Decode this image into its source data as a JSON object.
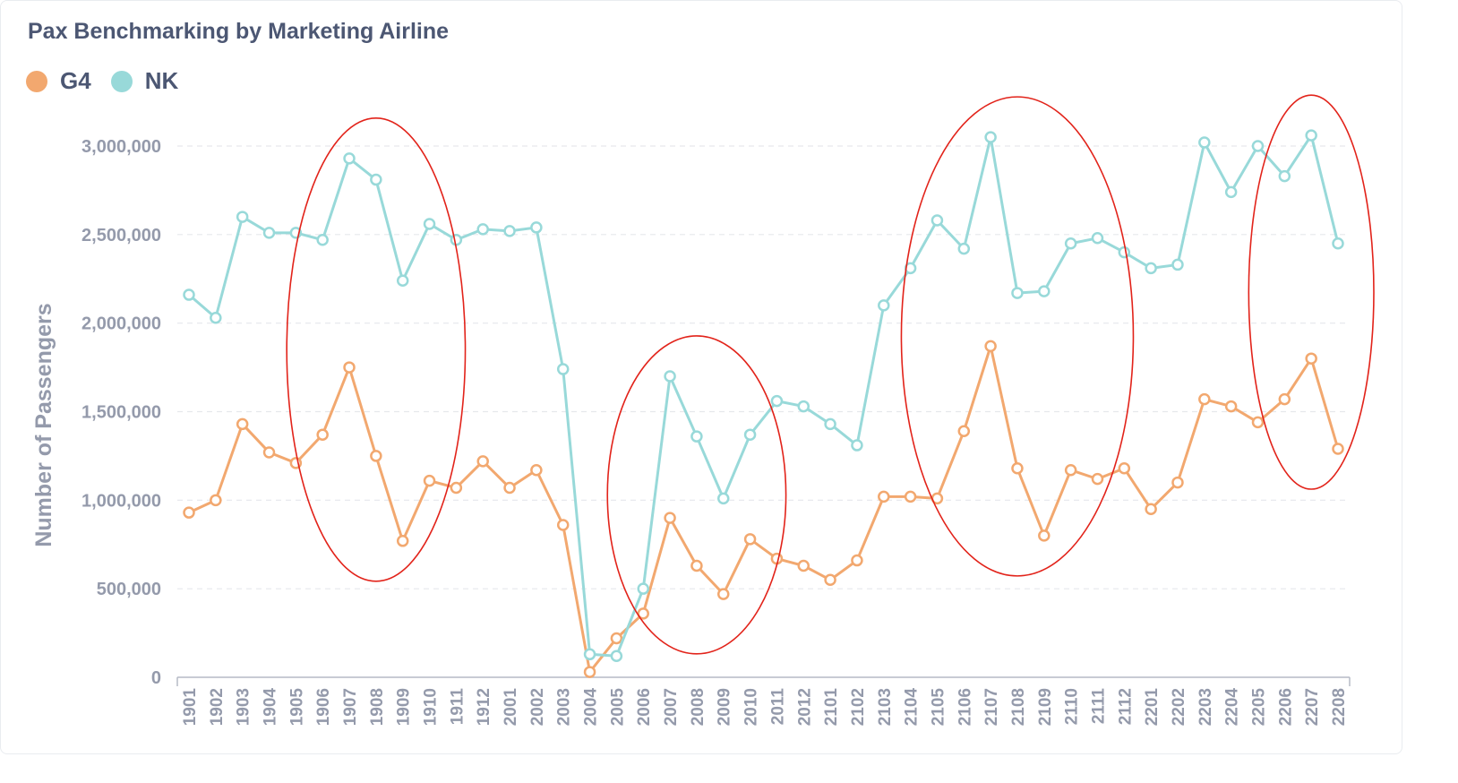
{
  "colors": {
    "G4": "#f2a86f",
    "NK": "#98d9d9",
    "annotation": "#e2231a",
    "grid": "#e6e8ec",
    "axis": "#b5bac5"
  },
  "card": {
    "title": "Pax Benchmarking by Marketing Airline"
  },
  "legend": [
    {
      "label": "G4",
      "color_key": "G4"
    },
    {
      "label": "NK",
      "color_key": "NK"
    }
  ],
  "chart_data": {
    "type": "line",
    "title": "Pax Benchmarking by Marketing Airline",
    "xlabel": "",
    "ylabel": "Number of Passengers",
    "ylim": [
      0,
      3000000
    ],
    "yticks": [
      0,
      500000,
      1000000,
      1500000,
      2000000,
      2500000,
      3000000
    ],
    "ytick_labels": [
      "0",
      "500,000",
      "1,000,000",
      "1,500,000",
      "2,000,000",
      "2,500,000",
      "3,000,000"
    ],
    "grid": true,
    "legend_position": "top-left",
    "categories": [
      "1901",
      "1902",
      "1903",
      "1904",
      "1905",
      "1906",
      "1907",
      "1908",
      "1909",
      "1910",
      "1911",
      "1912",
      "2001",
      "2002",
      "2003",
      "2004",
      "2005",
      "2006",
      "2007",
      "2008",
      "2009",
      "2010",
      "2011",
      "2012",
      "2101",
      "2102",
      "2103",
      "2104",
      "2105",
      "2106",
      "2107",
      "2108",
      "2109",
      "2110",
      "2111",
      "2112",
      "2201",
      "2202",
      "2203",
      "2204",
      "2205",
      "2206",
      "2207",
      "2208"
    ],
    "series": [
      {
        "name": "G4",
        "values": [
          930000,
          1000000,
          1430000,
          1270000,
          1210000,
          1370000,
          1750000,
          1250000,
          770000,
          1110000,
          1070000,
          1220000,
          1070000,
          1170000,
          860000,
          30000,
          220000,
          360000,
          900000,
          630000,
          470000,
          780000,
          670000,
          630000,
          550000,
          660000,
          1020000,
          1020000,
          1010000,
          1390000,
          1870000,
          1180000,
          800000,
          1170000,
          1120000,
          1180000,
          950000,
          1100000,
          1570000,
          1530000,
          1440000,
          1570000,
          1800000,
          1290000
        ]
      },
      {
        "name": "NK",
        "values": [
          2160000,
          2030000,
          2600000,
          2510000,
          2510000,
          2470000,
          2930000,
          2810000,
          2240000,
          2560000,
          2470000,
          2530000,
          2520000,
          2540000,
          1740000,
          130000,
          120000,
          500000,
          1700000,
          1360000,
          1010000,
          1370000,
          1560000,
          1530000,
          1430000,
          1310000,
          2100000,
          2310000,
          2580000,
          2420000,
          3050000,
          2170000,
          2180000,
          2450000,
          2480000,
          2400000,
          2310000,
          2330000,
          3020000,
          2740000,
          3000000,
          2830000,
          3060000,
          2450000
        ]
      }
    ],
    "annotations": [
      {
        "type": "ellipse",
        "from_category": "1906",
        "to_category": "1910"
      },
      {
        "type": "ellipse",
        "from_category": "2006",
        "to_category": "2010"
      },
      {
        "type": "ellipse",
        "from_category": "2105",
        "to_category": "2111"
      },
      {
        "type": "ellipse",
        "from_category": "2206",
        "to_category": "2208"
      }
    ]
  }
}
